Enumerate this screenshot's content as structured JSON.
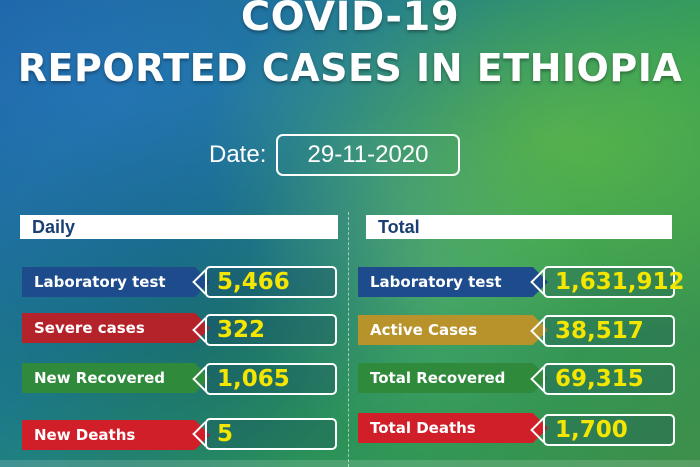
{
  "header": {
    "line1": "COVID-19",
    "line2": "REPORTED CASES IN ETHIOPIA"
  },
  "date": {
    "label": "Date:",
    "value": "29-11-2020"
  },
  "daily": {
    "heading": "Daily",
    "rows": [
      {
        "label": "Laboratory test",
        "value": "5,466",
        "color": "#1e4b8c"
      },
      {
        "label": "Severe cases",
        "value": "322",
        "color": "#b5232a"
      },
      {
        "label": "New Recovered",
        "value": "1,065",
        "color": "#2f8a3c"
      },
      {
        "label": "New Deaths",
        "value": "5",
        "color": "#d11f2a"
      }
    ]
  },
  "total": {
    "heading": "Total",
    "rows": [
      {
        "label": "Laboratory test",
        "value": "1,631,912",
        "color": "#1e4b8c"
      },
      {
        "label": "Active Cases",
        "value": "38,517",
        "color": "#b8922a"
      },
      {
        "label": "Total Recovered",
        "value": "69,315",
        "color": "#2f8a3c"
      },
      {
        "label": "Total Deaths",
        "value": "1,700",
        "color": "#d11f2a"
      }
    ]
  }
}
